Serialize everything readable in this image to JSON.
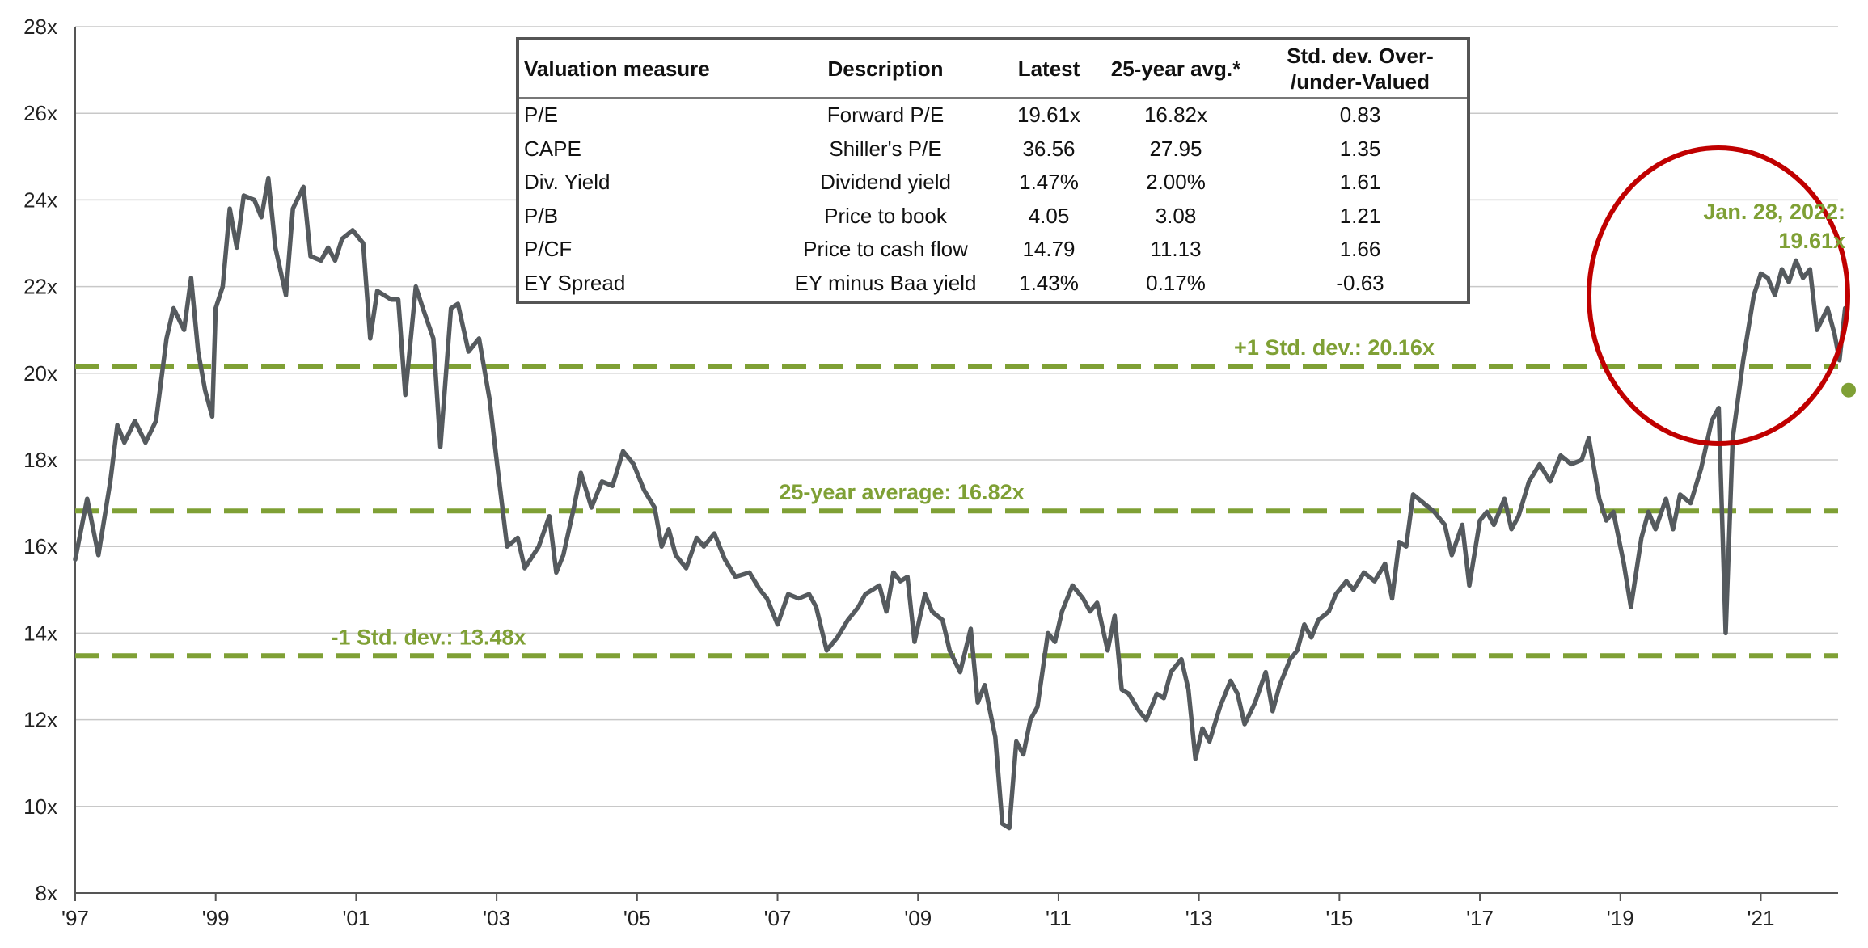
{
  "chart_data": {
    "type": "line",
    "title": "",
    "xlabel": "",
    "ylabel": "",
    "ylim": [
      8,
      28
    ],
    "xlim": [
      1997.0,
      2022.1
    ],
    "y_ticks": [
      "8x",
      "10x",
      "12x",
      "14x",
      "16x",
      "18x",
      "20x",
      "22x",
      "24x",
      "26x",
      "28x"
    ],
    "x_ticks": [
      {
        "label": "'97",
        "value": 1997
      },
      {
        "label": "'99",
        "value": 1999
      },
      {
        "label": "'01",
        "value": 2001
      },
      {
        "label": "'03",
        "value": 2003
      },
      {
        "label": "'05",
        "value": 2005
      },
      {
        "label": "'07",
        "value": 2007
      },
      {
        "label": "'09",
        "value": 2009
      },
      {
        "label": "'11",
        "value": 2011
      },
      {
        "label": "'13",
        "value": 2013
      },
      {
        "label": "'15",
        "value": 2015
      },
      {
        "label": "'17",
        "value": 2017
      },
      {
        "label": "'19",
        "value": 2019
      },
      {
        "label": "'21",
        "value": 2021
      }
    ],
    "grid": true,
    "series": [
      {
        "name": "",
        "color": "#555a5e",
        "points": [
          [
            1997.0,
            15.7
          ],
          [
            1997.17,
            17.1
          ],
          [
            1997.33,
            15.8
          ],
          [
            1997.5,
            17.5
          ],
          [
            1997.6,
            18.8
          ],
          [
            1997.7,
            18.4
          ],
          [
            1997.85,
            18.9
          ],
          [
            1998.0,
            18.4
          ],
          [
            1998.15,
            18.9
          ],
          [
            1998.3,
            20.8
          ],
          [
            1998.4,
            21.5
          ],
          [
            1998.55,
            21.0
          ],
          [
            1998.65,
            22.2
          ],
          [
            1998.75,
            20.5
          ],
          [
            1998.85,
            19.6
          ],
          [
            1998.95,
            19.0
          ],
          [
            1999.0,
            21.5
          ],
          [
            1999.1,
            22.0
          ],
          [
            1999.2,
            23.8
          ],
          [
            1999.3,
            22.9
          ],
          [
            1999.4,
            24.1
          ],
          [
            1999.55,
            24.0
          ],
          [
            1999.65,
            23.6
          ],
          [
            1999.75,
            24.5
          ],
          [
            1999.85,
            22.9
          ],
          [
            2000.0,
            21.8
          ],
          [
            2000.1,
            23.8
          ],
          [
            2000.25,
            24.3
          ],
          [
            2000.35,
            22.7
          ],
          [
            2000.5,
            22.6
          ],
          [
            2000.6,
            22.9
          ],
          [
            2000.7,
            22.6
          ],
          [
            2000.8,
            23.1
          ],
          [
            2000.95,
            23.3
          ],
          [
            2001.1,
            23.0
          ],
          [
            2001.2,
            20.8
          ],
          [
            2001.3,
            21.9
          ],
          [
            2001.5,
            21.7
          ],
          [
            2001.6,
            21.7
          ],
          [
            2001.7,
            19.5
          ],
          [
            2001.85,
            22.0
          ],
          [
            2001.95,
            21.5
          ],
          [
            2002.1,
            20.8
          ],
          [
            2002.2,
            18.3
          ],
          [
            2002.35,
            21.5
          ],
          [
            2002.45,
            21.6
          ],
          [
            2002.6,
            20.5
          ],
          [
            2002.75,
            20.8
          ],
          [
            2002.9,
            19.4
          ],
          [
            2003.0,
            18.0
          ],
          [
            2003.15,
            16.0
          ],
          [
            2003.3,
            16.2
          ],
          [
            2003.4,
            15.5
          ],
          [
            2003.6,
            16.0
          ],
          [
            2003.75,
            16.7
          ],
          [
            2003.85,
            15.4
          ],
          [
            2003.95,
            15.8
          ],
          [
            2004.1,
            16.9
          ],
          [
            2004.2,
            17.7
          ],
          [
            2004.35,
            16.9
          ],
          [
            2004.5,
            17.5
          ],
          [
            2004.65,
            17.4
          ],
          [
            2004.8,
            18.2
          ],
          [
            2004.95,
            17.9
          ],
          [
            2005.1,
            17.3
          ],
          [
            2005.25,
            16.9
          ],
          [
            2005.35,
            16.0
          ],
          [
            2005.45,
            16.4
          ],
          [
            2005.55,
            15.8
          ],
          [
            2005.7,
            15.5
          ],
          [
            2005.85,
            16.2
          ],
          [
            2005.95,
            16.0
          ],
          [
            2006.1,
            16.3
          ],
          [
            2006.25,
            15.7
          ],
          [
            2006.4,
            15.3
          ],
          [
            2006.6,
            15.4
          ],
          [
            2006.75,
            15.0
          ],
          [
            2006.85,
            14.8
          ],
          [
            2007.0,
            14.2
          ],
          [
            2007.15,
            14.9
          ],
          [
            2007.3,
            14.8
          ],
          [
            2007.45,
            14.9
          ],
          [
            2007.55,
            14.6
          ],
          [
            2007.7,
            13.6
          ],
          [
            2007.85,
            13.9
          ],
          [
            2008.0,
            14.3
          ],
          [
            2008.15,
            14.6
          ],
          [
            2008.25,
            14.9
          ],
          [
            2008.45,
            15.1
          ],
          [
            2008.55,
            14.5
          ],
          [
            2008.65,
            15.4
          ],
          [
            2008.75,
            15.2
          ],
          [
            2008.85,
            15.3
          ],
          [
            2008.95,
            13.8
          ],
          [
            2009.1,
            14.9
          ],
          [
            2009.2,
            14.5
          ],
          [
            2009.35,
            14.3
          ],
          [
            2009.45,
            13.6
          ],
          [
            2009.6,
            13.1
          ],
          [
            2009.75,
            14.1
          ],
          [
            2009.85,
            12.4
          ],
          [
            2009.95,
            12.8
          ],
          [
            2010.1,
            11.6
          ],
          [
            2010.2,
            9.6
          ],
          [
            2010.3,
            9.5
          ],
          [
            2010.4,
            11.5
          ],
          [
            2010.5,
            11.2
          ],
          [
            2010.6,
            12.0
          ],
          [
            2010.7,
            12.3
          ],
          [
            2010.85,
            14.0
          ],
          [
            2010.95,
            13.8
          ],
          [
            2011.05,
            14.5
          ],
          [
            2011.2,
            15.1
          ],
          [
            2011.35,
            14.8
          ],
          [
            2011.45,
            14.5
          ],
          [
            2011.55,
            14.7
          ],
          [
            2011.7,
            13.6
          ],
          [
            2011.8,
            14.4
          ],
          [
            2011.9,
            12.7
          ],
          [
            2012.0,
            12.6
          ],
          [
            2012.15,
            12.2
          ],
          [
            2012.25,
            12.0
          ],
          [
            2012.4,
            12.6
          ],
          [
            2012.5,
            12.5
          ],
          [
            2012.6,
            13.1
          ],
          [
            2012.75,
            13.4
          ],
          [
            2012.85,
            12.7
          ],
          [
            2012.95,
            11.1
          ],
          [
            2013.05,
            11.8
          ],
          [
            2013.15,
            11.5
          ],
          [
            2013.3,
            12.3
          ],
          [
            2013.45,
            12.9
          ],
          [
            2013.55,
            12.6
          ],
          [
            2013.65,
            11.9
          ],
          [
            2013.8,
            12.4
          ],
          [
            2013.95,
            13.1
          ],
          [
            2014.05,
            12.2
          ],
          [
            2014.15,
            12.8
          ],
          [
            2014.3,
            13.4
          ],
          [
            2014.4,
            13.6
          ],
          [
            2014.5,
            14.2
          ],
          [
            2014.6,
            13.9
          ],
          [
            2014.7,
            14.3
          ],
          [
            2014.85,
            14.5
          ],
          [
            2014.95,
            14.9
          ],
          [
            2015.1,
            15.2
          ],
          [
            2015.2,
            15.0
          ],
          [
            2015.35,
            15.4
          ],
          [
            2015.5,
            15.2
          ],
          [
            2015.65,
            15.6
          ],
          [
            2015.75,
            14.8
          ],
          [
            2015.85,
            16.1
          ],
          [
            2015.95,
            16.0
          ],
          [
            2016.05,
            17.2
          ],
          [
            2016.2,
            17.0
          ],
          [
            2016.35,
            16.8
          ],
          [
            2016.5,
            16.5
          ],
          [
            2016.6,
            15.8
          ],
          [
            2016.75,
            16.5
          ],
          [
            2016.85,
            15.1
          ],
          [
            2017.0,
            16.6
          ],
          [
            2017.1,
            16.8
          ],
          [
            2017.2,
            16.5
          ],
          [
            2017.35,
            17.1
          ],
          [
            2017.45,
            16.4
          ],
          [
            2017.55,
            16.7
          ],
          [
            2017.7,
            17.5
          ],
          [
            2017.85,
            17.9
          ],
          [
            2018.0,
            17.5
          ],
          [
            2018.15,
            18.1
          ],
          [
            2018.3,
            17.9
          ],
          [
            2018.45,
            18.0
          ],
          [
            2018.55,
            18.5
          ],
          [
            2018.7,
            17.1
          ],
          [
            2018.8,
            16.6
          ],
          [
            2018.9,
            16.8
          ],
          [
            2019.05,
            15.6
          ],
          [
            2019.15,
            14.6
          ],
          [
            2019.3,
            16.2
          ],
          [
            2019.4,
            16.8
          ],
          [
            2019.5,
            16.4
          ],
          [
            2019.65,
            17.1
          ],
          [
            2019.75,
            16.4
          ],
          [
            2019.85,
            17.2
          ],
          [
            2020.0,
            17.0
          ],
          [
            2020.15,
            17.8
          ],
          [
            2020.3,
            18.9
          ],
          [
            2020.4,
            19.2
          ],
          [
            2020.5,
            14.0
          ],
          [
            2020.6,
            18.5
          ],
          [
            2020.75,
            20.3
          ],
          [
            2020.9,
            21.8
          ],
          [
            2021.0,
            22.3
          ],
          [
            2021.1,
            22.2
          ],
          [
            2021.2,
            21.8
          ],
          [
            2021.3,
            22.4
          ],
          [
            2021.4,
            22.1
          ],
          [
            2021.5,
            22.6
          ],
          [
            2021.6,
            22.2
          ],
          [
            2021.7,
            22.4
          ],
          [
            2021.8,
            21.0
          ],
          [
            2021.95,
            21.5
          ],
          [
            2022.05,
            20.9
          ],
          [
            2022.12,
            20.3
          ],
          [
            2022.2,
            21.5
          ]
        ]
      }
    ],
    "reference_lines": [
      {
        "label": "+1 Std. dev.: 20.16x",
        "value": 20.16,
        "color": "#7fa035",
        "style": "dashed"
      },
      {
        "label": "25-year average: 16.82x",
        "value": 16.82,
        "color": "#7fa035",
        "style": "dashed"
      },
      {
        "label": "-1 Std. dev.: 13.48x",
        "value": 13.48,
        "color": "#7fa035",
        "style": "dashed"
      }
    ],
    "latest_point": {
      "x": 2022.25,
      "y": 19.61,
      "color": "#7fa035"
    },
    "annotation": {
      "line1": "Jan. 28, 2022:",
      "line2": "19.61x",
      "color": "#7fa035"
    },
    "highlight_circle_color": "#c00000"
  },
  "table": {
    "headers": [
      "Valuation measure",
      "Description",
      "Latest",
      "25-year avg.*",
      "Std. dev. Over-\n/under-Valued"
    ],
    "rows": [
      [
        "P/E",
        "Forward P/E",
        "19.61x",
        "16.82x",
        "0.83"
      ],
      [
        "CAPE",
        "Shiller's P/E",
        "36.56",
        "27.95",
        "1.35"
      ],
      [
        "Div. Yield",
        "Dividend yield",
        "1.47%",
        "2.00%",
        "1.61"
      ],
      [
        "P/B",
        "Price to book",
        "4.05",
        "3.08",
        "1.21"
      ],
      [
        "P/CF",
        "Price to cash flow",
        "14.79",
        "11.13",
        "1.66"
      ],
      [
        "EY Spread",
        "EY minus Baa yield",
        "1.43%",
        "0.17%",
        "-0.63"
      ]
    ]
  }
}
